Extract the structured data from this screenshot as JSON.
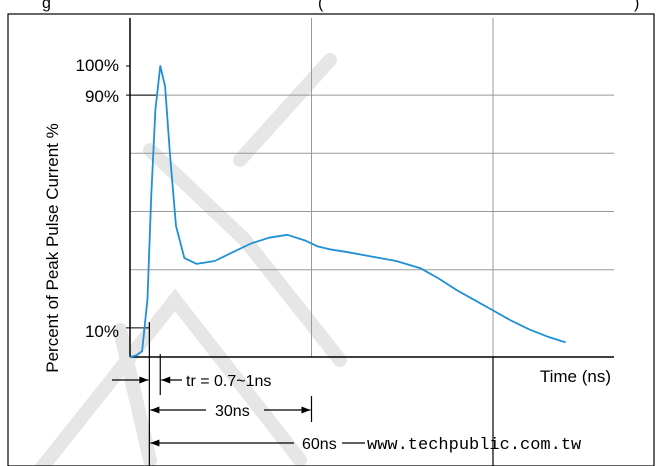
{
  "header": {
    "caption_left": "g",
    "caption_right": "(",
    "caption_tail": ")"
  },
  "chart_data": {
    "type": "line",
    "title": "",
    "xlabel": "Time (ns)",
    "ylabel": "Percent of Peak Pulse Current %",
    "xlim": [
      0,
      80
    ],
    "ylim": [
      0,
      100
    ],
    "y_ticks": [
      {
        "value": 100,
        "label": "100%"
      },
      {
        "value": 90,
        "label": "90%"
      },
      {
        "value": 10,
        "label": "10%"
      }
    ],
    "x_gridlines": [
      30,
      60
    ],
    "y_gridlines": [
      30,
      50,
      70,
      90
    ],
    "grid": true,
    "series": [
      {
        "color": "#1f8fd6",
        "x": [
          0,
          1,
          2,
          2.9,
          3.5,
          4.2,
          5.0,
          5.8,
          6.6,
          7.6,
          9.0,
          11,
          14,
          17,
          20,
          23,
          26,
          29,
          31,
          33,
          36,
          40,
          44,
          48,
          51,
          54,
          57,
          60,
          63,
          66,
          69,
          72
        ],
        "y": [
          0,
          0.5,
          2,
          20,
          55,
          85,
          100,
          93,
          70,
          45,
          34,
          32,
          33,
          36,
          39,
          41,
          42,
          40,
          38,
          37,
          36,
          34.5,
          33,
          30.5,
          27,
          23,
          19.5,
          16,
          12.5,
          9.5,
          7,
          5
        ]
      }
    ],
    "annotations": {
      "rise_time": "tr = 0.7~1ns",
      "t30": "30ns",
      "t60": "60ns"
    }
  },
  "watermark": "www.techpublic.com.tw"
}
